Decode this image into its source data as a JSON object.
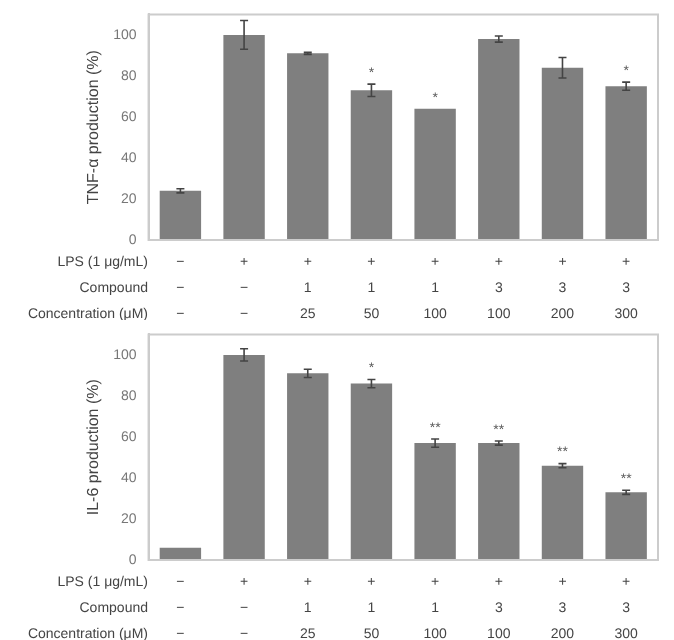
{
  "chart_data": [
    {
      "type": "bar",
      "ylabel": "TNF-α production (%)",
      "categories": [
        "−\n−\n−",
        "+\n−\n−",
        "+\n1\n25",
        "+\n1\n50",
        "+\n1\n100",
        "+\n3\n100",
        "+\n3\n200",
        "+\n3\n300"
      ],
      "values": [
        24,
        100,
        91,
        73,
        64,
        98,
        84,
        75
      ],
      "errors": [
        1,
        7,
        0.5,
        3,
        null,
        1.5,
        5,
        2
      ],
      "value_labels": [
        null,
        null,
        null,
        "*",
        "*",
        null,
        null,
        "*"
      ],
      "color": "#7f7f7f",
      "ylim": [
        0,
        110
      ],
      "yticks": [
        0,
        20,
        40,
        60,
        80,
        100
      ],
      "grid": false,
      "legend": false,
      "annotations": [
        "LPS (1 μg/mL)",
        "Compound",
        "Concentration (μM)"
      ]
    },
    {
      "type": "bar",
      "ylabel": "IL-6 production (%)",
      "categories": [
        "−\n−\n−",
        "+\n−\n−",
        "+\n1\n25",
        "+\n1\n50",
        "+\n1\n100",
        "+\n3\n100",
        "+\n3\n200",
        "+\n3\n300"
      ],
      "values": [
        6,
        100,
        91,
        86,
        57,
        57,
        46,
        33
      ],
      "errors": [
        null,
        3,
        2,
        2,
        2,
        1,
        1,
        1
      ],
      "value_labels": [
        null,
        null,
        null,
        "*",
        "**",
        "**",
        "**",
        "**"
      ],
      "color": "#7f7f7f",
      "ylim": [
        0,
        110
      ],
      "yticks": [
        0,
        20,
        40,
        60,
        80,
        100
      ],
      "grid": false,
      "legend": false,
      "annotations": [
        "LPS (1 μg/mL)",
        "Compound",
        "Concentration (μM)"
      ]
    }
  ]
}
